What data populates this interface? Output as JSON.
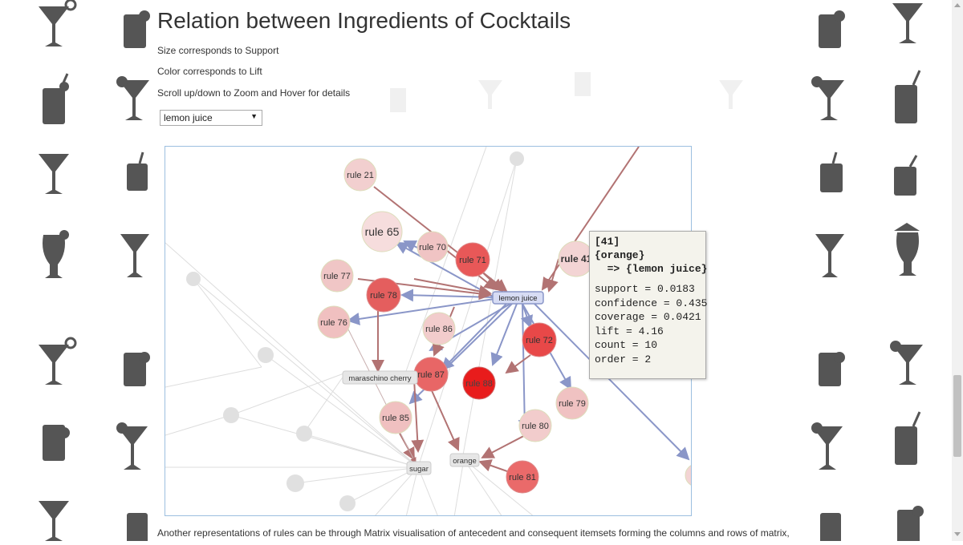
{
  "header": {
    "title": "Relation between Ingredients of Cocktails",
    "line1": "Size corresponds to Support",
    "line2": "Color corresponds to Lift",
    "line3": "Scroll up/down to Zoom and Hover for details"
  },
  "select": {
    "value": "lemon juice"
  },
  "graph": {
    "nodes": [
      {
        "label": "rule 21"
      },
      {
        "label": "rule 65"
      },
      {
        "label": "rule 70"
      },
      {
        "label": "rule 71"
      },
      {
        "label": "rule 41"
      },
      {
        "label": "rule 77"
      },
      {
        "label": "rule 78"
      },
      {
        "label": "rule 76"
      },
      {
        "label": "rule 86"
      },
      {
        "label": "rule 72"
      },
      {
        "label": "rule 87"
      },
      {
        "label": "rule 88"
      },
      {
        "label": "rule 79"
      },
      {
        "label": "rule 85"
      },
      {
        "label": "rule 80"
      },
      {
        "label": "rule 81"
      },
      {
        "label": "lemon juice"
      },
      {
        "label": "maraschino cherry"
      },
      {
        "label": "sugar"
      },
      {
        "label": "orange"
      }
    ]
  },
  "tooltip": {
    "id": "[41]",
    "lhs": "{orange}",
    "rhs": "  => {lemon juice}",
    "support": "support = 0.0183",
    "confidence": "confidence = 0.435",
    "coverage": "coverage = 0.0421",
    "lift": "lift = 4.16",
    "count": "count = 10",
    "order": "order = 2"
  },
  "footer": {
    "text": "Another representations of rules can be through Matrix visualisation of antecedent and consequent itemsets forming the columns and rows of matrix,"
  },
  "colors": {
    "edge_blue": "#8a96c8",
    "edge_red": "#b27373",
    "node_strong": "#e81c1c",
    "node_mid": "#ea6464",
    "node_light": "#f0c8c8",
    "tooltip_bg": "#f4f3ec"
  }
}
